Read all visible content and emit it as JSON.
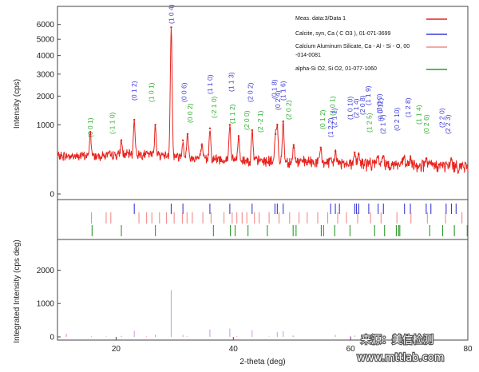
{
  "chart_data": [
    {
      "type": "line",
      "panel": "measured-pattern",
      "ylabel": "Intensity (cps)",
      "yscale": "sqrt",
      "ylim": [
        0,
        6500
      ],
      "yticks": [
        0,
        1000,
        2000,
        3000,
        4000,
        5000,
        6000
      ],
      "xlim": [
        10,
        80
      ],
      "legend": {
        "placement": "top-right",
        "entries": [
          {
            "label": "Meas. data:3/Data 1",
            "color": "#e8231e"
          },
          {
            "label": "Calcite, syn, Ca ( C O3 ), 01-071-3699",
            "color": "#3a3ad6"
          },
          {
            "label": "Calcium Aluminum Silicate, Ca - Al - Si - O, 00",
            "label2": "-014-0081",
            "color": "#f08c8c"
          },
          {
            "label": "alpha-Si O2, Si O2, 01-077-1060",
            "color": "#2a9a2a"
          }
        ]
      },
      "peaks": [
        {
          "x": 15.6,
          "y": 800
        },
        {
          "x": 20.9,
          "y": 600
        },
        {
          "x": 23.1,
          "y": 1150
        },
        {
          "x": 26.7,
          "y": 1000
        },
        {
          "x": 29.4,
          "y": 5800
        },
        {
          "x": 31.4,
          "y": 600
        },
        {
          "x": 32.2,
          "y": 750
        },
        {
          "x": 34.6,
          "y": 500
        },
        {
          "x": 36.0,
          "y": 900
        },
        {
          "x": 39.4,
          "y": 1000
        },
        {
          "x": 40.9,
          "y": 700
        },
        {
          "x": 43.2,
          "y": 850
        },
        {
          "x": 47.2,
          "y": 750
        },
        {
          "x": 47.5,
          "y": 1000
        },
        {
          "x": 48.5,
          "y": 1100
        },
        {
          "x": 50.3,
          "y": 500
        },
        {
          "x": 54.9,
          "y": 450
        },
        {
          "x": 57.4,
          "y": 380
        },
        {
          "x": 60.7,
          "y": 360
        },
        {
          "x": 61.4,
          "y": 330
        },
        {
          "x": 64.7,
          "y": 300
        },
        {
          "x": 65.6,
          "y": 300
        },
        {
          "x": 69.1,
          "y": 280
        },
        {
          "x": 70.2,
          "y": 250
        },
        {
          "x": 72.9,
          "y": 260
        },
        {
          "x": 77.2,
          "y": 250
        }
      ],
      "hkl_labels": [
        {
          "text": "(0 0 1)",
          "phase": "quartz"
        },
        {
          "text": "(-1 1 0)",
          "phase": "quartz"
        },
        {
          "text": "(0 1 2)",
          "phase": "calcite"
        },
        {
          "text": "(1 0 1)",
          "phase": "quartz"
        },
        {
          "text": "(1 0 4)",
          "phase": "calcite"
        },
        {
          "text": "(0 0 6)",
          "phase": "calcite"
        },
        {
          "text": "(0 0 2)",
          "phase": "quartz"
        },
        {
          "text": "(1 1 0)",
          "phase": "calcite"
        },
        {
          "text": "(-2 1 0)",
          "phase": "quartz"
        },
        {
          "text": "(1 1 3)",
          "phase": "calcite"
        },
        {
          "text": "(1 1 2)",
          "phase": "quartz"
        },
        {
          "text": "(2 0 2)",
          "phase": "calcite"
        },
        {
          "text": "(2 0 0)",
          "phase": "quartz"
        },
        {
          "text": "(2 -2 1)",
          "phase": "quartz"
        },
        {
          "text": "(0 1 8)",
          "phase": "calcite"
        },
        {
          "text": "(0 2 4)",
          "phase": "calcite"
        },
        {
          "text": "(1 1 6)",
          "phase": "calcite"
        },
        {
          "text": "(2 0 2)",
          "phase": "quartz"
        },
        {
          "text": "(0 1 2)",
          "phase": "quartz"
        },
        {
          "text": "(1 0 1)",
          "phase": "quartz"
        },
        {
          "text": "(2 1 1)",
          "phase": "calcite"
        },
        {
          "text": "(1 2 2)",
          "phase": "calcite"
        },
        {
          "text": "(1 0 10)",
          "phase": "calcite"
        },
        {
          "text": "(2 1 4)",
          "phase": "calcite"
        },
        {
          "text": "(2 0 8)",
          "phase": "calcite"
        },
        {
          "text": "(1 1 9)",
          "phase": "calcite"
        },
        {
          "text": "(1 2 5)",
          "phase": "quartz"
        },
        {
          "text": "(3 0 0)",
          "phase": "calcite"
        },
        {
          "text": "(0 0 12)",
          "phase": "calcite"
        },
        {
          "text": "(2 1 7)",
          "phase": "calcite"
        },
        {
          "text": "(0 2 10)",
          "phase": "calcite"
        },
        {
          "text": "(1 2 8)",
          "phase": "calcite"
        },
        {
          "text": "(1 1 4)",
          "phase": "quartz"
        },
        {
          "text": "(0 2 6)",
          "phase": "quartz"
        },
        {
          "text": "(2 2 0)",
          "phase": "calcite"
        },
        {
          "text": "(2 2 3)",
          "phase": "calcite"
        }
      ]
    },
    {
      "type": "stick",
      "panel": "reference-phase-markers",
      "series": [
        {
          "name": "Calcite, syn, Ca ( C O3 ), 01-071-3699",
          "color": "#3a3ad6",
          "x": [
            23.1,
            29.4,
            31.4,
            36.0,
            39.4,
            43.2,
            47.1,
            47.5,
            48.5,
            56.6,
            57.4,
            58.1,
            60.7,
            61.0,
            61.4,
            63.1,
            64.7,
            65.6,
            69.2,
            70.2,
            72.9,
            73.7,
            76.3,
            77.2,
            78.0
          ]
        },
        {
          "name": "Calcium Aluminum Silicate, Ca - Al - Si - O, 00-014-0081",
          "color": "#f08c8c",
          "x": [
            15.8,
            18.3,
            19.1,
            23.9,
            25.2,
            26.1,
            27.4,
            28.6,
            29.9,
            31.3,
            32.1,
            33.0,
            34.8,
            36.2,
            38.4,
            39.8,
            40.6,
            41.5,
            42.3,
            43.6,
            44.4,
            46.1,
            47.8,
            49.6,
            51.2,
            52.6,
            54.4,
            56.1,
            57.8,
            59.3,
            61.2,
            63.4,
            65.2,
            67.9,
            70.3,
            73.1,
            76.2,
            79.0
          ]
        },
        {
          "name": "alpha-Si O2, Si O2, 01-077-1060",
          "color": "#2a9a2a",
          "x": [
            15.9,
            20.9,
            26.7,
            36.6,
            39.5,
            40.3,
            42.5,
            45.8,
            50.2,
            50.7,
            55.0,
            55.4,
            57.3,
            59.9,
            64.1,
            65.8,
            67.8,
            68.2,
            68.4,
            73.5,
            75.7,
            77.7,
            79.9
          ]
        }
      ]
    },
    {
      "type": "stick",
      "panel": "integrated-intensity",
      "xlabel": "2-theta (deg)",
      "ylabel": "Integrated Intensity (cps deg)",
      "xlim": [
        10,
        80
      ],
      "xticks": [
        20,
        40,
        60,
        80
      ],
      "ylim": [
        0,
        2800
      ],
      "yticks": [
        0,
        1000,
        2000
      ],
      "series": [
        {
          "name": "Calcite, syn, Ca ( C O3 ), 01-071-3699",
          "color": "#d0a0e0",
          "x": [
            23.1,
            29.4,
            31.4,
            36.0,
            39.4,
            43.2,
            47.5,
            48.5,
            57.4,
            60.7,
            64.7,
            65.6
          ],
          "y": [
            180,
            1400,
            60,
            220,
            250,
            200,
            150,
            170,
            60,
            40,
            40,
            30
          ]
        },
        {
          "name": "Calcium Aluminum Silicate, Ca - Al - Si - O, 00-014-0081",
          "color": "#f2b4b4",
          "x": [
            15.8,
            18.3,
            25.2,
            32.1,
            40.6,
            46.1
          ],
          "y": [
            30,
            20,
            30,
            25,
            30,
            20
          ]
        },
        {
          "name": "alpha-Si O2, Si O2, 01-077-1060",
          "color": "#e080e0",
          "x": [
            11.5,
            20.9,
            26.7,
            50.2,
            60.0,
            68.2,
            73.5
          ],
          "y": [
            90,
            30,
            60,
            40,
            30,
            60,
            40
          ]
        }
      ]
    }
  ],
  "watermark": {
    "line1": "来源：美信检测",
    "line2": "www.mttlab.com"
  }
}
